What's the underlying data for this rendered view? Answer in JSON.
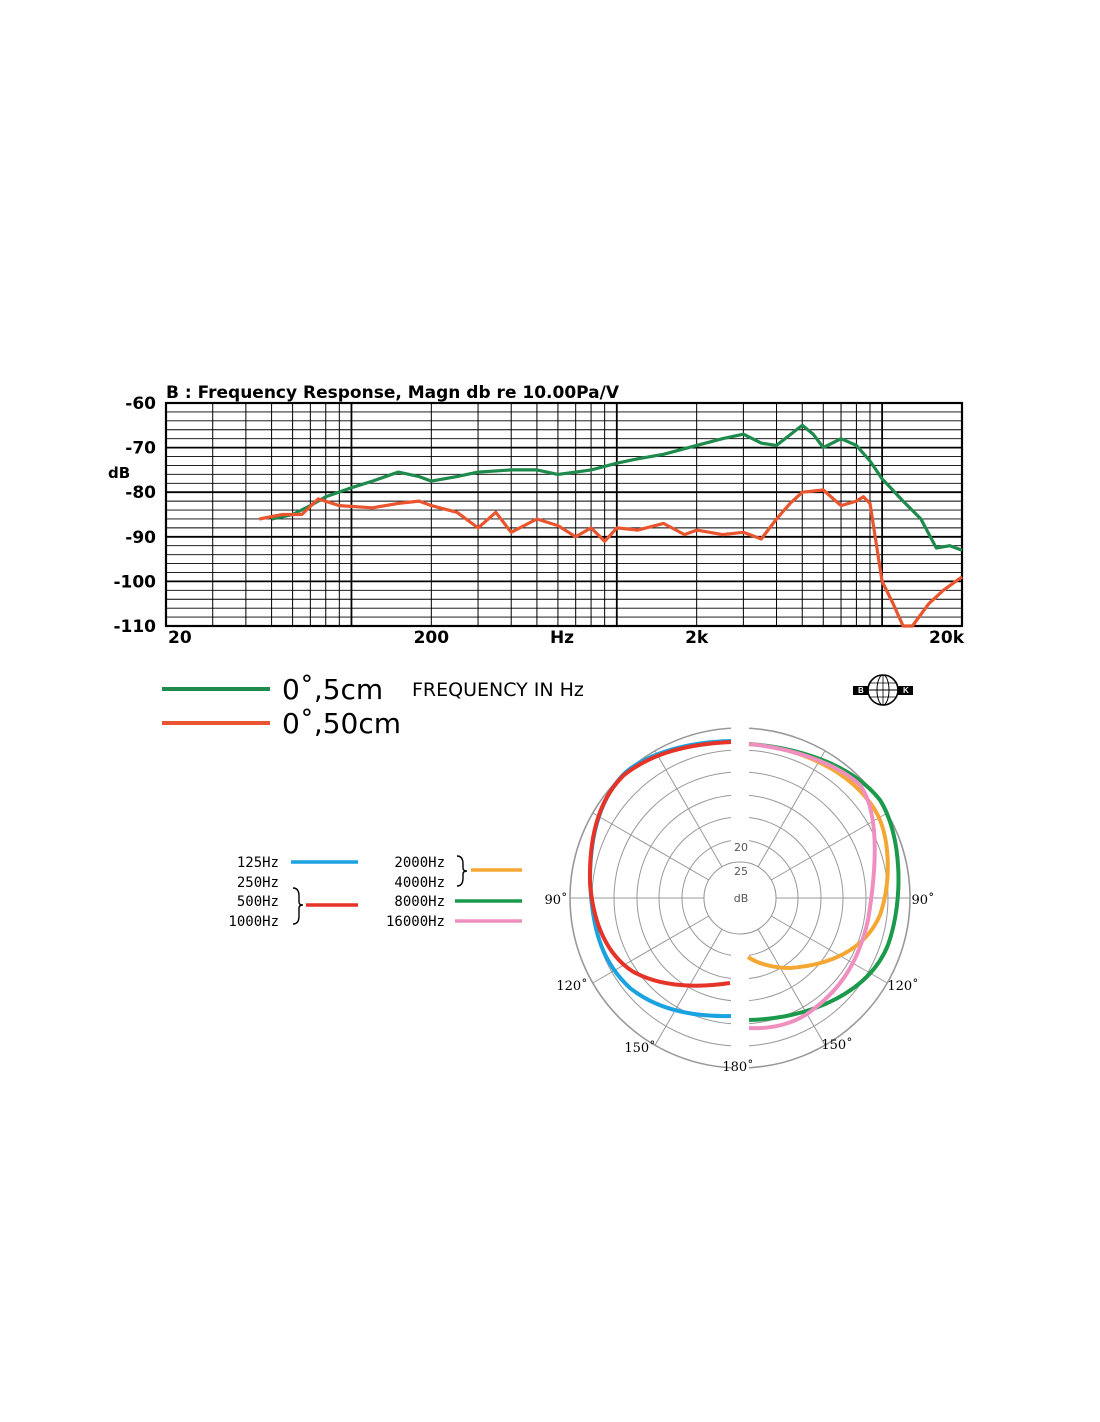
{
  "chart_data": [
    {
      "type": "line",
      "title": "B : Frequency Response, Magn db re 10.00Pa/V",
      "xlabel": "Hz",
      "ylabel": "dB",
      "xscale": "log",
      "xlim": [
        20,
        20000
      ],
      "ylim": [
        -110,
        -60
      ],
      "yticks": [
        -60,
        -70,
        -80,
        -90,
        -100,
        -110
      ],
      "ytick_labels": [
        "-60",
        "-70",
        "-80",
        "-90",
        "-100",
        "-110"
      ],
      "xticks": [
        20,
        200,
        2000,
        20000
      ],
      "xtick_labels": [
        "20",
        "200",
        "2k",
        "20k"
      ],
      "grid": true,
      "legend_position": "bottom-left",
      "legend_note": "FREQUENCY IN Hz",
      "series": [
        {
          "name": "0˚,5cm",
          "color": "#1e8a4c",
          "x": [
            50,
            60,
            70,
            80,
            100,
            120,
            150,
            180,
            200,
            250,
            300,
            400,
            500,
            600,
            700,
            800,
            1000,
            1200,
            1500,
            2000,
            2500,
            3000,
            3500,
            4000,
            5000,
            5500,
            6000,
            7000,
            8000,
            9000,
            10000,
            12000,
            14000,
            16000,
            18000,
            20000
          ],
          "y": [
            -86,
            -85,
            -83,
            -81,
            -79,
            -77.5,
            -75.5,
            -76.5,
            -77.5,
            -76.5,
            -75.5,
            -75,
            -75,
            -76,
            -75.5,
            -75,
            -73.5,
            -72.5,
            -71.5,
            -69.5,
            -68,
            -67,
            -69,
            -69.5,
            -65,
            -67,
            -70,
            -68,
            -69.5,
            -73,
            -77,
            -82,
            -86,
            -92.5,
            -92,
            -93
          ]
        },
        {
          "name": "0˚,50cm",
          "color": "#e8552e",
          "x": [
            45,
            55,
            65,
            75,
            90,
            120,
            150,
            180,
            200,
            250,
            300,
            350,
            400,
            500,
            600,
            700,
            800,
            900,
            1000,
            1200,
            1500,
            1800,
            2000,
            2500,
            3000,
            3500,
            4000,
            4500,
            5000,
            6000,
            7000,
            8000,
            8500,
            9000,
            10000,
            11000,
            12000,
            13000,
            15000,
            17000,
            20000
          ],
          "y": [
            -86,
            -85,
            -85,
            -81.5,
            -83,
            -83.5,
            -82.5,
            -82,
            -83,
            -84.5,
            -88,
            -84.5,
            -89,
            -86,
            -87.5,
            -90,
            -88,
            -91,
            -88,
            -88.5,
            -87,
            -89.5,
            -88.5,
            -89.5,
            -89,
            -90.5,
            -86,
            -82.5,
            -80,
            -79.5,
            -83,
            -82,
            -81,
            -82.5,
            -100,
            -105,
            -110,
            -110,
            -105,
            -102,
            -99
          ]
        }
      ]
    },
    {
      "type": "polar",
      "ring_labels": [
        "20",
        "25",
        "dB"
      ],
      "angle_labels": [
        "90˚",
        "120˚",
        "150˚",
        "180˚",
        "150˚",
        "120˚",
        "90˚"
      ],
      "legend_position": "left",
      "legend": [
        {
          "labels": [
            "125Hz"
          ],
          "color": "#1aa3e0"
        },
        {
          "labels": [
            "250Hz",
            "500Hz",
            "1000Hz"
          ],
          "color": "#e53328"
        },
        {
          "labels": [
            "2000Hz",
            "4000Hz"
          ],
          "color": "#f5a733"
        },
        {
          "labels": [
            "8000Hz"
          ],
          "color": "#1a9a4a"
        },
        {
          "labels": [
            "16000Hz"
          ],
          "color": "#ef8fc0"
        }
      ]
    }
  ],
  "logo": {
    "text_left": "B",
    "text_right": "K"
  }
}
